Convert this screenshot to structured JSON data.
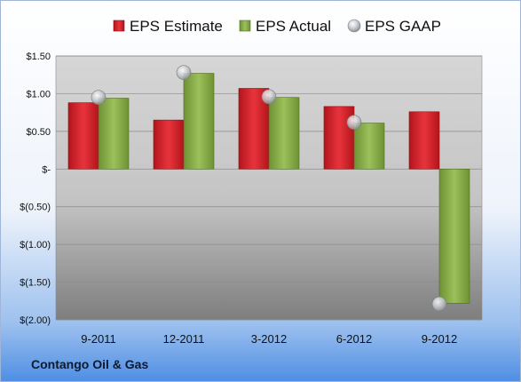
{
  "company_label": "Contango Oil & Gas",
  "colors": {
    "estimate": "#d9232b",
    "actual": "#8fb24c",
    "gaap": "#b8bcc2"
  },
  "chart_data": {
    "type": "bar",
    "categories": [
      "9-2011",
      "12-2011",
      "3-2012",
      "6-2012",
      "9-2012"
    ],
    "series": [
      {
        "name": "EPS Estimate",
        "kind": "bar",
        "values": [
          0.88,
          0.65,
          1.07,
          0.83,
          0.76
        ]
      },
      {
        "name": "EPS Actual",
        "kind": "bar",
        "values": [
          0.94,
          1.27,
          0.95,
          0.61,
          -1.78
        ]
      },
      {
        "name": "EPS GAAP",
        "kind": "marker",
        "values": [
          0.95,
          1.28,
          0.96,
          0.62,
          -1.79
        ]
      }
    ],
    "ylim": [
      -2.0,
      1.5
    ],
    "yticks": [
      1.5,
      1.0,
      0.5,
      0,
      -0.5,
      -1.0,
      -1.5,
      -2.0
    ],
    "ytick_labels": [
      "$1.50",
      "$1.00",
      "$0.50",
      "$-",
      "$(0.50)",
      "$(1.00)",
      "$(1.50)",
      "$(2.00)"
    ],
    "grid": true,
    "legend": "top"
  }
}
